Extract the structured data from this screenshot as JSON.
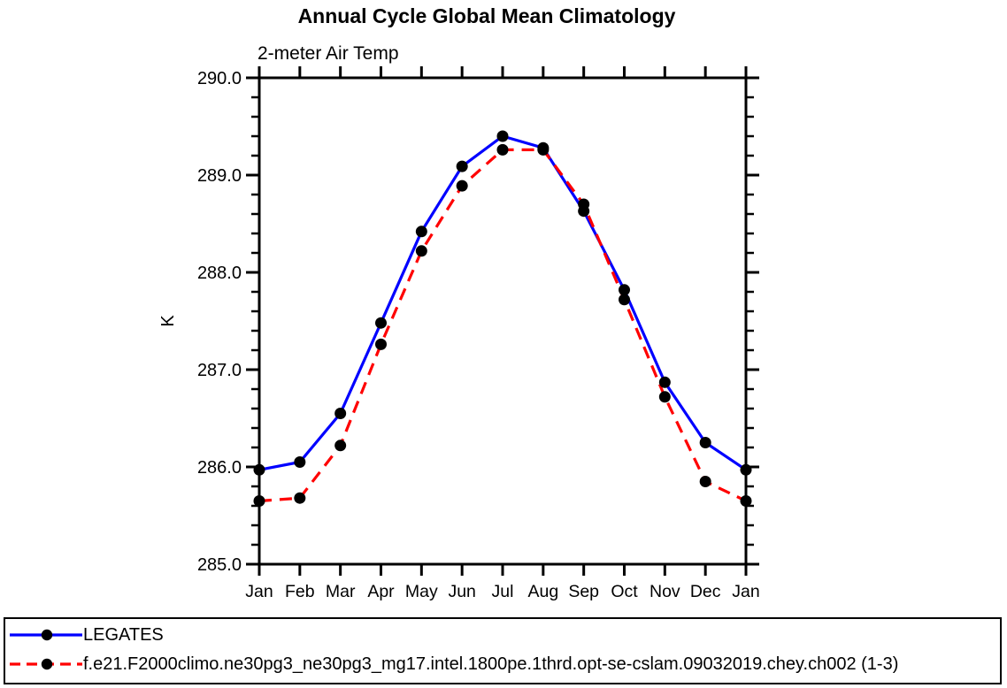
{
  "title": "Annual Cycle Global Mean Climatology",
  "subtitle": "2-meter Air Temp",
  "chart_data": {
    "type": "line",
    "title": "Annual Cycle Global Mean Climatology",
    "subtitle": "2-meter Air Temp",
    "xlabel": "",
    "ylabel": "K",
    "ylim": [
      285.0,
      290.0
    ],
    "ytick_interval_major": 1.0,
    "ytick_interval_minor": 0.2,
    "ytick_labels": [
      "285.0",
      "286.0",
      "287.0",
      "288.0",
      "289.0",
      "290.0"
    ],
    "grid": false,
    "legend_position": "bottom",
    "categories": [
      "Jan",
      "Feb",
      "Mar",
      "Apr",
      "May",
      "Jun",
      "Jul",
      "Aug",
      "Sep",
      "Oct",
      "Nov",
      "Dec",
      "Jan"
    ],
    "series": [
      {
        "name": "LEGATES",
        "color": "#0000ff",
        "line_style": "solid",
        "marker": "filled-circle",
        "marker_color": "#000000",
        "values": [
          285.97,
          286.05,
          286.55,
          287.48,
          288.42,
          289.09,
          289.4,
          289.28,
          288.63,
          287.82,
          286.87,
          286.25,
          285.97
        ]
      },
      {
        "name": "f.e21.F2000climo.ne30pg3_ne30pg3_mg17.intel.1800pe.1thrd.opt-se-cslam.09032019.chey.ch002 (1-3)",
        "color": "#ff0000",
        "line_style": "dashed",
        "marker": "filled-circle",
        "marker_color": "#000000",
        "values": [
          285.65,
          285.68,
          286.22,
          287.26,
          288.22,
          288.89,
          289.26,
          289.26,
          288.7,
          287.72,
          286.72,
          285.85,
          285.65
        ]
      }
    ]
  }
}
